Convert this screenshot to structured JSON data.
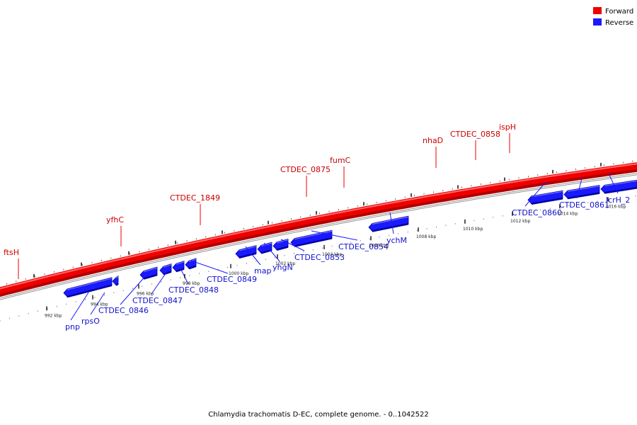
{
  "colors": {
    "forward": "#ee0000",
    "forward_dark": "#b00000",
    "reverse": "#1a1aff",
    "reverse_dark": "#0000a0",
    "forward_label": "#cc0000",
    "reverse_label": "#1010cc",
    "backbone_grey": "#888888"
  },
  "legend": {
    "forward_label": "Forward",
    "reverse_label": "Reverse"
  },
  "caption": "Chlamydia trachomatis D-EC, complete genome. - 0..1042522",
  "kbp_ticks": [
    "992 kbp",
    "994 kbp",
    "996 kbp",
    "998 kbp",
    "1000 kbp",
    "1002 kbp",
    "1004 kbp",
    "1006 kbp",
    "1008 kbp",
    "1010 kbp",
    "1012 kbp",
    "1014 kbp",
    "1016 kbp"
  ],
  "forward_genes": [
    "ftsH",
    "yfhC",
    "CTDEC_1849",
    "CTDEC_0875",
    "fumC",
    "nhaD",
    "CTDEC_0858",
    "ispH"
  ],
  "reverse_genes": [
    "pnp",
    "rpsO",
    "CTDEC_0846",
    "CTDEC_0847",
    "CTDEC_0848",
    "CTDEC_0849",
    "map",
    "yhgN",
    "CTDEC_0853",
    "CTDEC_0854",
    "ychM",
    "CTDEC_0860",
    "CTDEC_0861",
    "lcrH_2"
  ]
}
